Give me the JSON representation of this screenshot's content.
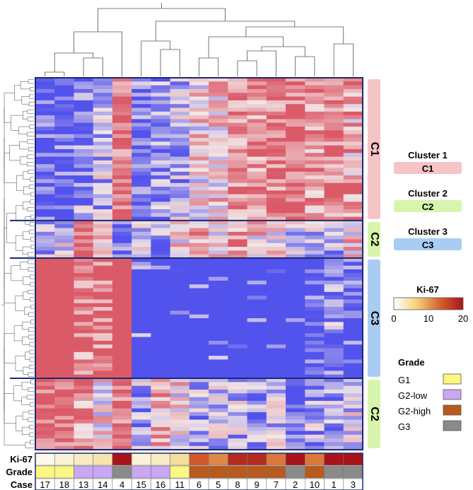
{
  "chart_data": {
    "type": "heatmap",
    "cases": [
      "17",
      "18",
      "13",
      "14",
      "4",
      "15",
      "16",
      "11",
      "6",
      "5",
      "8",
      "9",
      "7",
      "2",
      "10",
      "1",
      "3"
    ],
    "ki67": [
      1,
      2,
      3,
      4,
      20,
      2,
      3,
      5,
      14,
      11,
      18,
      18,
      12,
      20,
      12,
      20,
      20
    ],
    "grade": [
      "G1",
      "G1",
      "G2-low",
      "G2-low",
      "G3",
      "G2-low",
      "G2-low",
      "G1",
      "G2-high",
      "G2-high",
      "G2-high",
      "G2-high",
      "G2-high",
      "G3",
      "G2-high",
      "G3",
      "G3"
    ],
    "row_labels": [
      "Ki-67",
      "Grade",
      "Case"
    ],
    "row_clusters": [
      {
        "label": "C1",
        "rows": 38,
        "color": "#f4c4c6"
      },
      {
        "label": "C2",
        "rows": 10,
        "color": "#d8f5ae"
      },
      {
        "label": "C3",
        "rows": 32,
        "color": "#a9cdf2"
      },
      {
        "label": "C2",
        "rows": 19,
        "color": "#d8f5ae"
      }
    ],
    "legend": {
      "clusters": [
        {
          "title": "Cluster 1",
          "label": "C1",
          "color": "#f4c4c6"
        },
        {
          "title": "Cluster 2",
          "label": "C2",
          "color": "#d8f5ae"
        },
        {
          "title": "Cluster 3",
          "label": "C3",
          "color": "#a9cdf2"
        }
      ],
      "ki67": {
        "title": "Ki-67",
        "ticks": [
          "0",
          "10",
          "20"
        ],
        "range": [
          0,
          20
        ],
        "colors": [
          "#ffffff",
          "#f2d27a",
          "#d6602d",
          "#a8141a"
        ]
      },
      "grade": {
        "title": "Grade",
        "items": [
          {
            "label": "G1",
            "color": "#fbf783"
          },
          {
            "label": "G2-low",
            "color": "#c9a7f2"
          },
          {
            "label": "G2-high",
            "color": "#b85a1e"
          },
          {
            "label": "G3",
            "color": "#8a8a8a"
          }
        ]
      }
    },
    "heat_colors": {
      "low": "#5252ec",
      "mid": "#f2e6e6",
      "high": "#db5a68"
    }
  }
}
